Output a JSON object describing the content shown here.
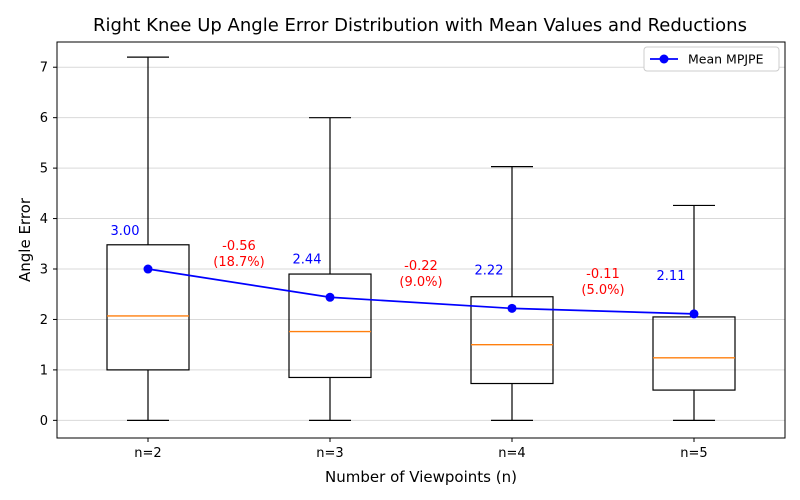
{
  "chart_data": {
    "type": "box",
    "title": "Right Knee Up Angle Error Distribution with Mean Values and Reductions",
    "xlabel": "Number of Viewpoints (n)",
    "ylabel": "Angle Error",
    "categories": [
      "n=2",
      "n=3",
      "n=4",
      "n=5"
    ],
    "ylim": [
      -0.35,
      7.5
    ],
    "yticks": [
      0,
      1,
      2,
      3,
      4,
      5,
      6,
      7
    ],
    "grid": "y",
    "boxes": [
      {
        "min": 0,
        "q1": 1.0,
        "median": 2.07,
        "q3": 3.48,
        "max": 7.2
      },
      {
        "min": 0,
        "q1": 0.85,
        "median": 1.76,
        "q3": 2.9,
        "max": 6.0
      },
      {
        "min": 0,
        "q1": 0.73,
        "median": 1.5,
        "q3": 2.45,
        "max": 5.03
      },
      {
        "min": 0,
        "q1": 0.6,
        "median": 1.24,
        "q3": 2.05,
        "max": 4.26
      }
    ],
    "series": [
      {
        "name": "Mean MPJPE",
        "values": [
          3.0,
          2.44,
          2.22,
          2.11
        ]
      }
    ],
    "mean_labels": [
      "3.00",
      "2.44",
      "2.22",
      "2.11"
    ],
    "reductions": [
      {
        "delta": "-0.56",
        "percent": "(18.7%)"
      },
      {
        "delta": "-0.22",
        "percent": "(9.0%)"
      },
      {
        "delta": "-0.11",
        "percent": "(5.0%)"
      }
    ],
    "legend": "top-right",
    "colors": {
      "box": "#000000",
      "median": "#ff7f0e",
      "mean_line": "#0000ff",
      "mean_text": "#0000ff",
      "reduction_text": "#ff0000",
      "grid": "#d9d9d9"
    }
  }
}
